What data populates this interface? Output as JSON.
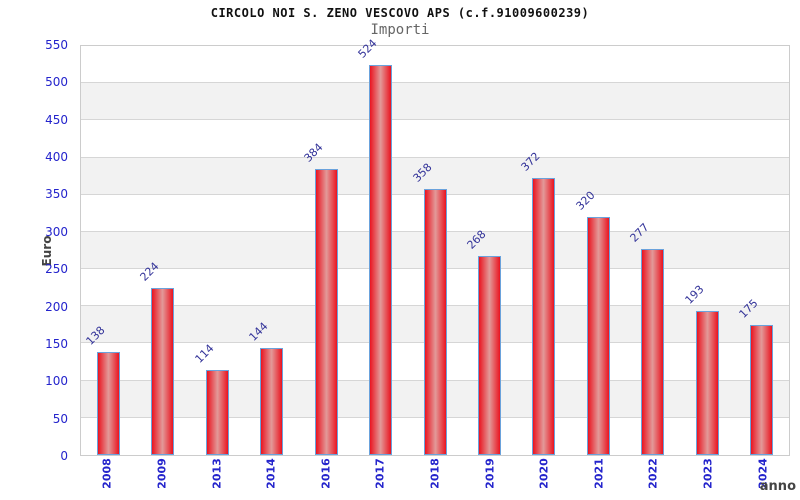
{
  "chart_data": {
    "type": "bar",
    "title": "CIRCOLO NOI S. ZENO VESCOVO APS (c.f.91009600239)",
    "subtitle": "Importi",
    "xlabel": "anno",
    "ylabel": "Euro",
    "categories": [
      "2008",
      "2009",
      "2013",
      "2014",
      "2016",
      "2017",
      "2018",
      "2019",
      "2020",
      "2021",
      "2022",
      "2023",
      "2024"
    ],
    "values": [
      138,
      224,
      114,
      144,
      384,
      524,
      358,
      268,
      372,
      320,
      277,
      193,
      175
    ],
    "ylim": [
      0,
      550
    ],
    "yticks": [
      0,
      50,
      100,
      150,
      200,
      250,
      300,
      350,
      400,
      450,
      500,
      550
    ],
    "legend": "none",
    "grid": "horizontal-lines-with-alternating-bands",
    "colors": {
      "bar_edge_red": "#ea1420",
      "bar_center_pink": "#e29a99",
      "bar_border_blue": "#6aa2dc",
      "tick_label_blue": "#2424cc",
      "value_label_navy": "#333399",
      "band_gray": "#f2f2f2",
      "gridline_gray": "#d6d6d6",
      "axis_title_gray": "#444444",
      "subtitle_gray": "#666666",
      "title_black": "#111111"
    }
  }
}
